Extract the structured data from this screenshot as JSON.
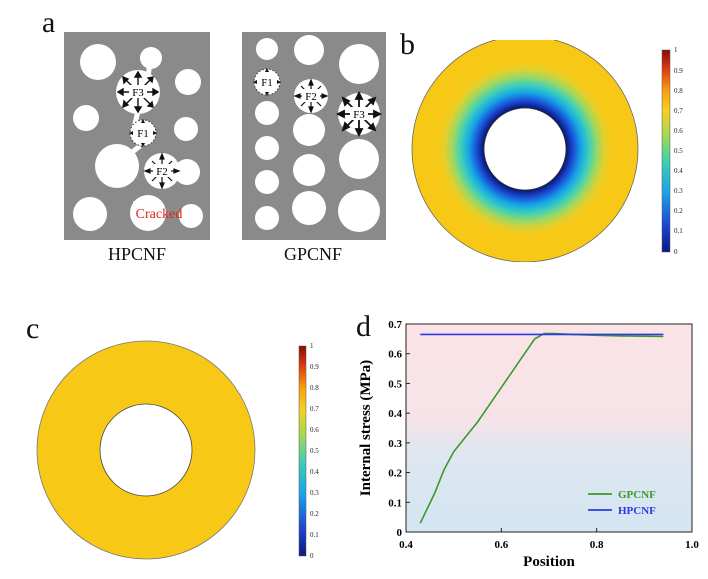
{
  "figure": {
    "panel_a": {
      "letter": "a",
      "left_label": "HPCNF",
      "right_label": "GPCNF",
      "crack_label": "Cracked",
      "force_labels": {
        "f1": "F1",
        "f2": "F2",
        "f3": "F3"
      },
      "colors": {
        "matrix": "#8a8a8a",
        "crack_text": "#e0201a",
        "hole": "#ffffff"
      }
    },
    "panel_b": {
      "letter": "b",
      "colorbar_ticks": [
        "0",
        "0.1",
        "0.2",
        "0.3",
        "0.4",
        "0.5",
        "0.6",
        "0.7",
        "0.8",
        "0.9",
        "1"
      ],
      "colors": {
        "outer": "#f7c816"
      }
    },
    "panel_c": {
      "letter": "c",
      "colorbar_ticks": [
        "0",
        "0.1",
        "0.2",
        "0.3",
        "0.4",
        "0.5",
        "0.6",
        "0.7",
        "0.8",
        "0.9",
        "1"
      ],
      "colors": {
        "ring": "#f7c816"
      }
    },
    "panel_d": {
      "letter": "d"
    }
  },
  "chart_data": {
    "type": "line",
    "title": "",
    "xlabel": "Position",
    "ylabel": "Internal stress (MPa)",
    "xlim": [
      0.4,
      1.0
    ],
    "ylim": [
      0,
      0.7
    ],
    "xticks": [
      "0.4",
      "0.6",
      "0.8",
      "1.0"
    ],
    "yticks": [
      "0",
      "0.1",
      "0.2",
      "0.3",
      "0.4",
      "0.5",
      "0.6",
      "0.7"
    ],
    "legend_position": "bottom-right",
    "series": [
      {
        "name": "GPCNF",
        "color": "#3a9a2a",
        "x": [
          0.43,
          0.46,
          0.48,
          0.5,
          0.52,
          0.55,
          0.58,
          0.61,
          0.64,
          0.67,
          0.69,
          0.71,
          0.75,
          0.8,
          0.85,
          0.9,
          0.94
        ],
        "y": [
          0.03,
          0.13,
          0.21,
          0.27,
          0.31,
          0.37,
          0.44,
          0.51,
          0.58,
          0.65,
          0.668,
          0.668,
          0.665,
          0.662,
          0.66,
          0.659,
          0.658
        ]
      },
      {
        "name": "HPCNF",
        "color": "#2a3ae0",
        "x": [
          0.43,
          0.6,
          0.8,
          0.94
        ],
        "y": [
          0.665,
          0.665,
          0.665,
          0.665
        ]
      }
    ],
    "background": {
      "top": "#fbe3e6",
      "bottom": "#d3e6f2"
    }
  }
}
